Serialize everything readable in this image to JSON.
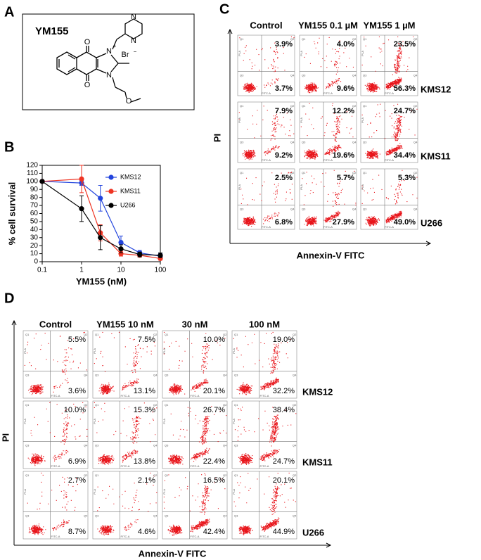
{
  "panel_a": {
    "label": "A",
    "compound": "YM155",
    "atoms": [
      "O",
      "O",
      "N",
      "+",
      "Br",
      "−",
      "N",
      "O",
      "N",
      "N"
    ]
  },
  "chart_data": {
    "type": "line",
    "label": "B",
    "xlabel": "YM155 (nM)",
    "ylabel": "% cell survival",
    "x": [
      0.1,
      1,
      3,
      10,
      30,
      100
    ],
    "xscale": "log",
    "xlim": [
      0.1,
      100
    ],
    "xticks": [
      0.1,
      1,
      10,
      100
    ],
    "ylim": [
      0,
      120
    ],
    "yticks": [
      0,
      10,
      20,
      30,
      40,
      50,
      60,
      70,
      80,
      90,
      100,
      110,
      120
    ],
    "legend": "upper right",
    "series": [
      {
        "name": "KMS12",
        "color": "#2244dd",
        "values": [
          100,
          98,
          79,
          24,
          11,
          7
        ],
        "errors": [
          0,
          3,
          16,
          8,
          3,
          3
        ]
      },
      {
        "name": "KMS11",
        "color": "#ee3322",
        "values": [
          100,
          103,
          36,
          10,
          8,
          4
        ],
        "errors": [
          0,
          17,
          10,
          3,
          2,
          2
        ]
      },
      {
        "name": "U266",
        "color": "#000000",
        "values": [
          100,
          66,
          30,
          16,
          9,
          8
        ],
        "errors": [
          0,
          16,
          15,
          5,
          3,
          3
        ]
      }
    ]
  },
  "flow_plot_labels": {
    "quadrants": [
      "Q1",
      "Q2",
      "Q3",
      "Q4"
    ],
    "x_channel": "FITC-A",
    "y_channel": "PI-A"
  },
  "panel_c": {
    "label": "C",
    "columns": [
      "Control",
      "YM155 0.1 µM",
      "YM155 1 µM"
    ],
    "rows": [
      "KMS12",
      "KMS11",
      "U266"
    ],
    "upper": [
      [
        "3.9%",
        "4.0%",
        "23.5%"
      ],
      [
        "7.9%",
        "12.2%",
        "24.7%"
      ],
      [
        "2.5%",
        "5.7%",
        "5.3%"
      ]
    ],
    "lower": [
      [
        "3.7%",
        "9.6%",
        "56.3%"
      ],
      [
        "9.2%",
        "19.6%",
        "34.4%"
      ],
      [
        "6.8%",
        "27.9%",
        "49.0%"
      ]
    ],
    "xlabel": "Annexin-V FITC",
    "ylabel": "PI"
  },
  "panel_d": {
    "label": "D",
    "columns": [
      "Control",
      "YM155 10 nM",
      "30 nM",
      "100 nM"
    ],
    "rows": [
      "KMS12",
      "KMS11",
      "U266"
    ],
    "upper": [
      [
        "5.5%",
        "7.5%",
        "10.0%",
        "19.0%"
      ],
      [
        "10.0%",
        "15.3%",
        "26.7%",
        "38.4%"
      ],
      [
        "2.7%",
        "2.1%",
        "16.5%",
        "20.1%"
      ]
    ],
    "lower": [
      [
        "3.6%",
        "13.1%",
        "20.1%",
        "32.2%"
      ],
      [
        "6.9%",
        "13.8%",
        "22.4%",
        "24.7%"
      ],
      [
        "8.7%",
        "4.6%",
        "42.4%",
        "44.9%"
      ]
    ],
    "xlabel": "Annexin-V FITC",
    "ylabel": "PI"
  }
}
